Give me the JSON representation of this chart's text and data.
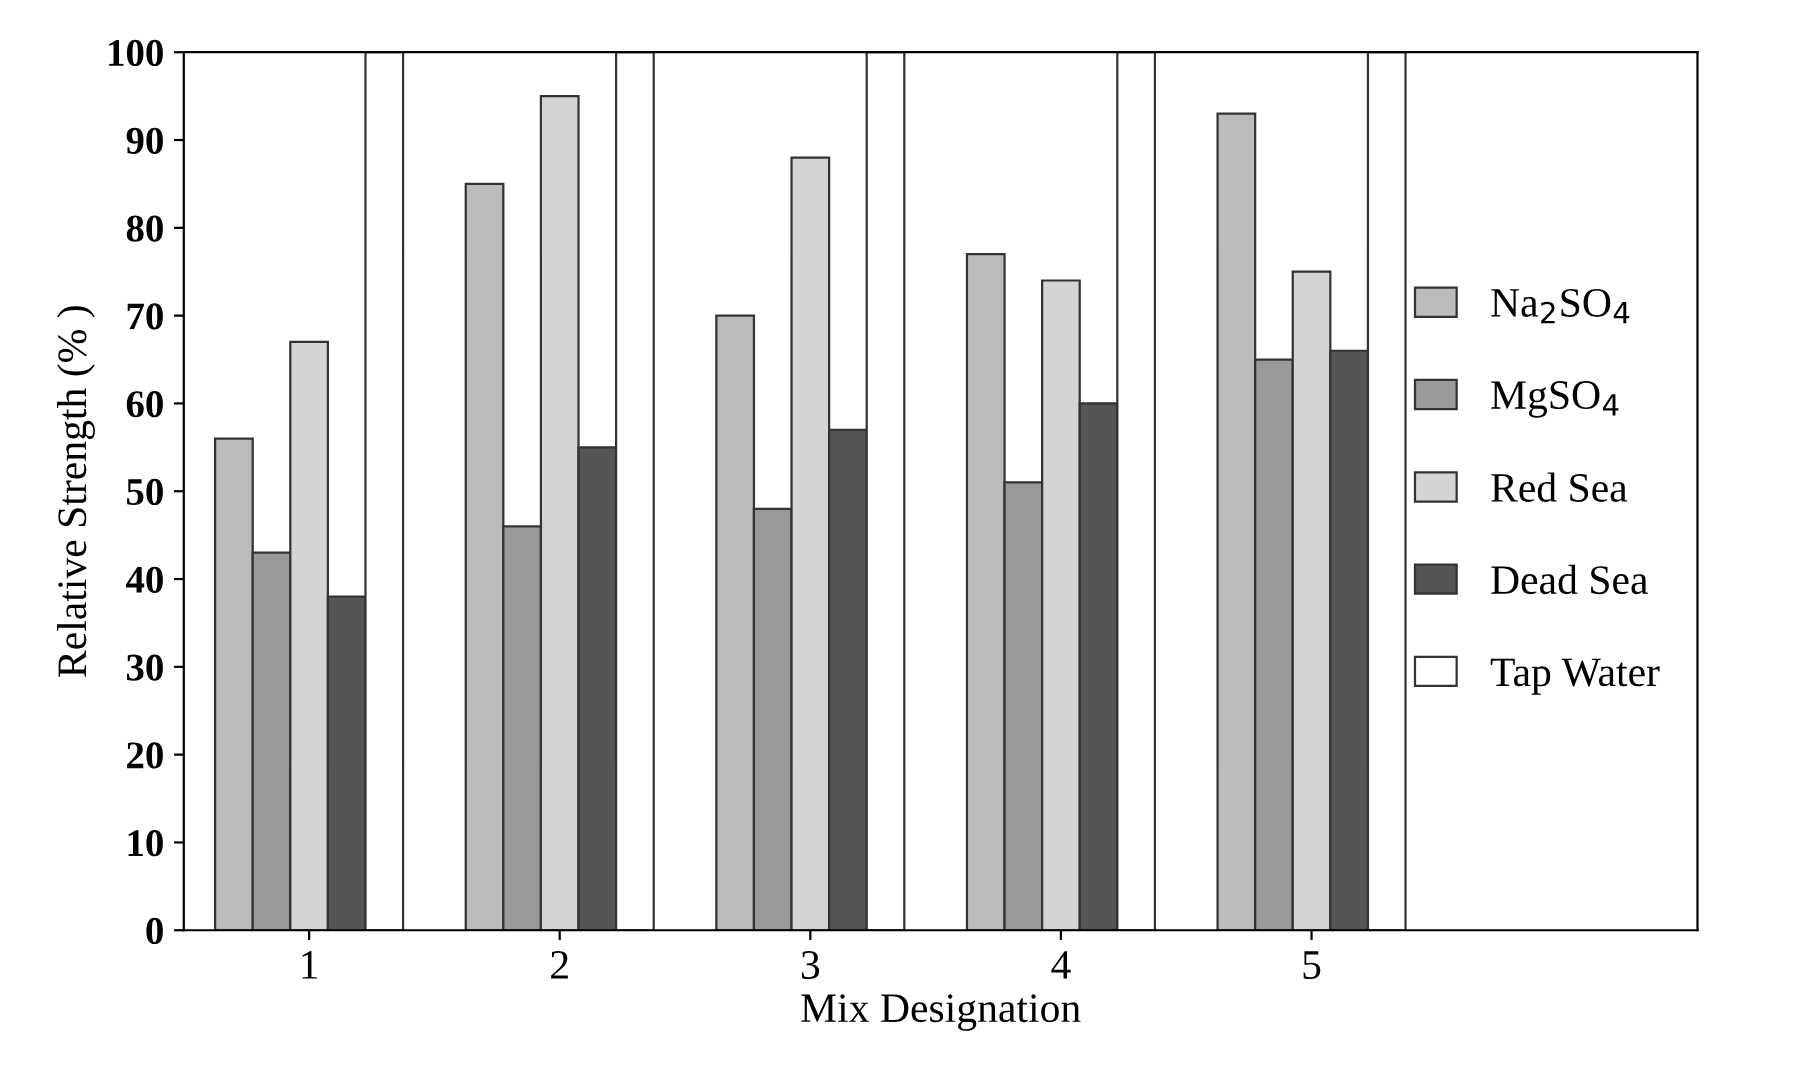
{
  "chart_data": {
    "type": "bar",
    "xlabel": "Mix Designation",
    "ylabel": "Relative Strength (% )",
    "categories": [
      "1",
      "2",
      "3",
      "4",
      "5"
    ],
    "series": [
      {
        "name": "Na$_{2}$SO$_{4}$",
        "color": "#bbbbbb",
        "values": [
          56,
          85,
          70,
          77,
          93
        ]
      },
      {
        "name": "MgSO$_{4}$",
        "color": "#999999",
        "values": [
          43,
          46,
          48,
          51,
          65
        ]
      },
      {
        "name": "Red Sea",
        "color": "#d4d4d4",
        "values": [
          67,
          95,
          88,
          74,
          75
        ]
      },
      {
        "name": "Dead Sea",
        "color": "#555555",
        "values": [
          38,
          55,
          57,
          60,
          66
        ]
      },
      {
        "name": "Tap Water",
        "color": "#ffffff",
        "values": [
          100,
          100,
          100,
          100,
          100
        ]
      }
    ],
    "ylim": [
      0,
      100
    ],
    "yticks": [
      0,
      10,
      20,
      30,
      40,
      50,
      60,
      70,
      80,
      90,
      100
    ],
    "grid": false,
    "legend": "right"
  }
}
